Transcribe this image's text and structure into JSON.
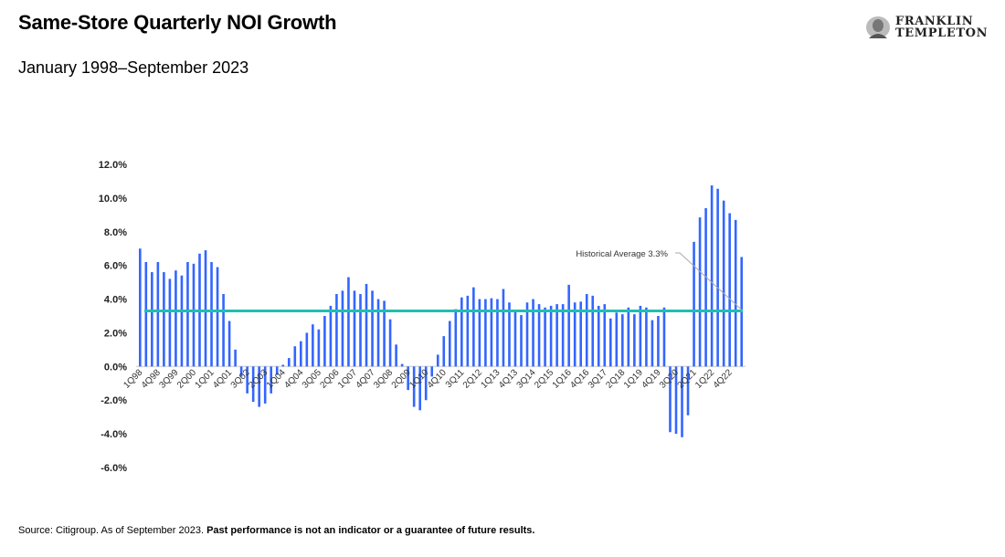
{
  "title": "Same-Store Quarterly NOI Growth",
  "subtitle": "January 1998–September 2023",
  "logo": {
    "line1": "FRANKLIN",
    "line2": "TEMPLETON"
  },
  "footer": {
    "source": "Source: Citigroup. As of September 2023. ",
    "disclaimer": "Past performance is not an indicator or a guarantee of future results."
  },
  "colors": {
    "bars": "#3366ff",
    "average_line": "#1fbfb0",
    "axis": "#d9d9d9"
  },
  "chart_data": {
    "type": "bar",
    "title": "Same-Store Quarterly NOI Growth",
    "ylim": [
      -6,
      12
    ],
    "yticks": [
      "12.0%",
      "10.0%",
      "8.0%",
      "6.0%",
      "4.0%",
      "2.0%",
      "0.0%",
      "-2.0%",
      "-4.0%",
      "-6.0%"
    ],
    "ytick_values": [
      12,
      10,
      8,
      6,
      4,
      2,
      0,
      -2,
      -4,
      -6
    ],
    "xtick_labels": [
      "1Q98",
      "4Q98",
      "3Q99",
      "2Q00",
      "1Q01",
      "4Q01",
      "3Q02",
      "2Q03",
      "1Q04",
      "4Q04",
      "3Q05",
      "2Q06",
      "1Q07",
      "4Q07",
      "3Q08",
      "2Q09",
      "1Q10",
      "4Q10",
      "3Q11",
      "2Q12",
      "1Q13",
      "4Q13",
      "3Q14",
      "2Q15",
      "1Q16",
      "4Q16",
      "3Q17",
      "2Q18",
      "1Q19",
      "4Q19",
      "3Q20",
      "2Q21",
      "1Q22",
      "4Q22"
    ],
    "xtick_every": 3,
    "grid": false,
    "values": [
      7.0,
      6.2,
      5.6,
      6.2,
      5.6,
      5.2,
      5.7,
      5.4,
      6.2,
      6.1,
      6.7,
      6.9,
      6.2,
      5.9,
      4.3,
      2.7,
      1.0,
      -0.6,
      -1.6,
      -2.1,
      -2.4,
      -2.2,
      -1.6,
      -0.5,
      0.1,
      0.5,
      1.2,
      1.5,
      2.0,
      2.5,
      2.2,
      3.0,
      3.6,
      4.3,
      4.5,
      5.3,
      4.5,
      4.3,
      4.9,
      4.5,
      4.0,
      3.9,
      2.8,
      1.3,
      0.15,
      -1.4,
      -2.4,
      -2.6,
      -2.0,
      -0.6,
      0.7,
      1.8,
      2.7,
      3.4,
      4.1,
      4.2,
      4.7,
      4.0,
      4.0,
      4.05,
      4.0,
      4.6,
      3.8,
      3.3,
      3.05,
      3.8,
      4.0,
      3.7,
      3.5,
      3.6,
      3.7,
      3.7,
      4.85,
      3.8,
      3.85,
      4.3,
      4.2,
      3.6,
      3.7,
      2.85,
      3.2,
      3.1,
      3.5,
      3.1,
      3.6,
      3.5,
      2.75,
      3.0,
      3.5,
      -3.9,
      -4.0,
      -4.2,
      -2.9,
      7.4,
      8.85,
      9.4,
      10.75,
      10.55,
      9.85,
      9.1,
      8.7,
      6.5
    ],
    "average": {
      "value": 3.3,
      "label": "Historical Average 3.3%"
    }
  }
}
